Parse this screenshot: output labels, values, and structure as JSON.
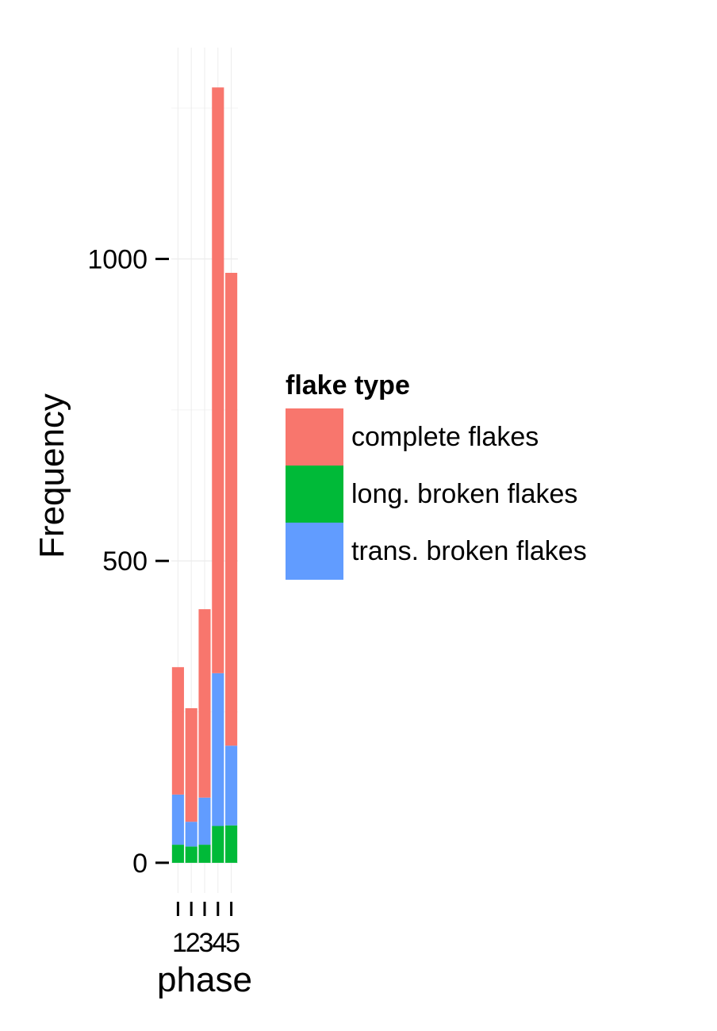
{
  "chart_data": {
    "type": "bar",
    "stacked": true,
    "categories": [
      "1",
      "2",
      "3",
      "4",
      "5"
    ],
    "series": [
      {
        "name": "long. broken flakes",
        "color": "#00ba38",
        "values": [
          30,
          27,
          30,
          61,
          62
        ]
      },
      {
        "name": "trans. broken flakes",
        "color": "#619cff",
        "values": [
          83,
          41,
          78,
          253,
          132
        ]
      },
      {
        "name": "complete flakes",
        "color": "#f8766d",
        "values": [
          211,
          188,
          312,
          970,
          783
        ]
      }
    ],
    "totals": [
      324,
      256,
      420,
      1284,
      977
    ],
    "title": "",
    "xlabel": "phase",
    "ylabel": "Frequency",
    "ylim": [
      -50,
      1350
    ],
    "yticks": [
      0,
      500,
      1000
    ],
    "grid": true,
    "legend": {
      "title": "flake type",
      "position": "right",
      "entries": [
        "complete flakes",
        "long. broken flakes",
        "trans. broken flakes"
      ]
    }
  }
}
